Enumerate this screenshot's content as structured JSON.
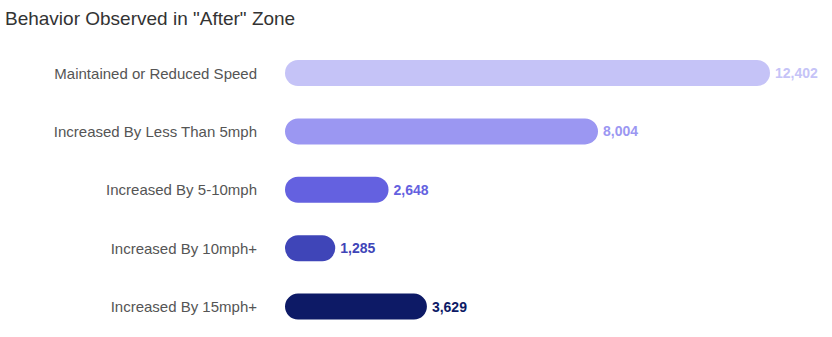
{
  "chart_data": {
    "type": "bar",
    "title": "Behavior Observed in \"After\" Zone",
    "orientation": "horizontal",
    "categories": [
      "Maintained or Reduced Speed",
      "Increased By Less Than 5mph",
      "Increased By 5-10mph",
      "Increased By 10mph+",
      "Increased By 15mph+"
    ],
    "values": [
      12402,
      8004,
      2648,
      1285,
      3629
    ],
    "value_labels": [
      "12,402",
      "8,004",
      "2,648",
      "1,285",
      "3,629"
    ],
    "colors": [
      "#c5c3f7",
      "#9b97f2",
      "#6461e0",
      "#3f45b8",
      "#0d1a66"
    ],
    "data_labels": true,
    "tick_labels": "y",
    "grid": false
  }
}
